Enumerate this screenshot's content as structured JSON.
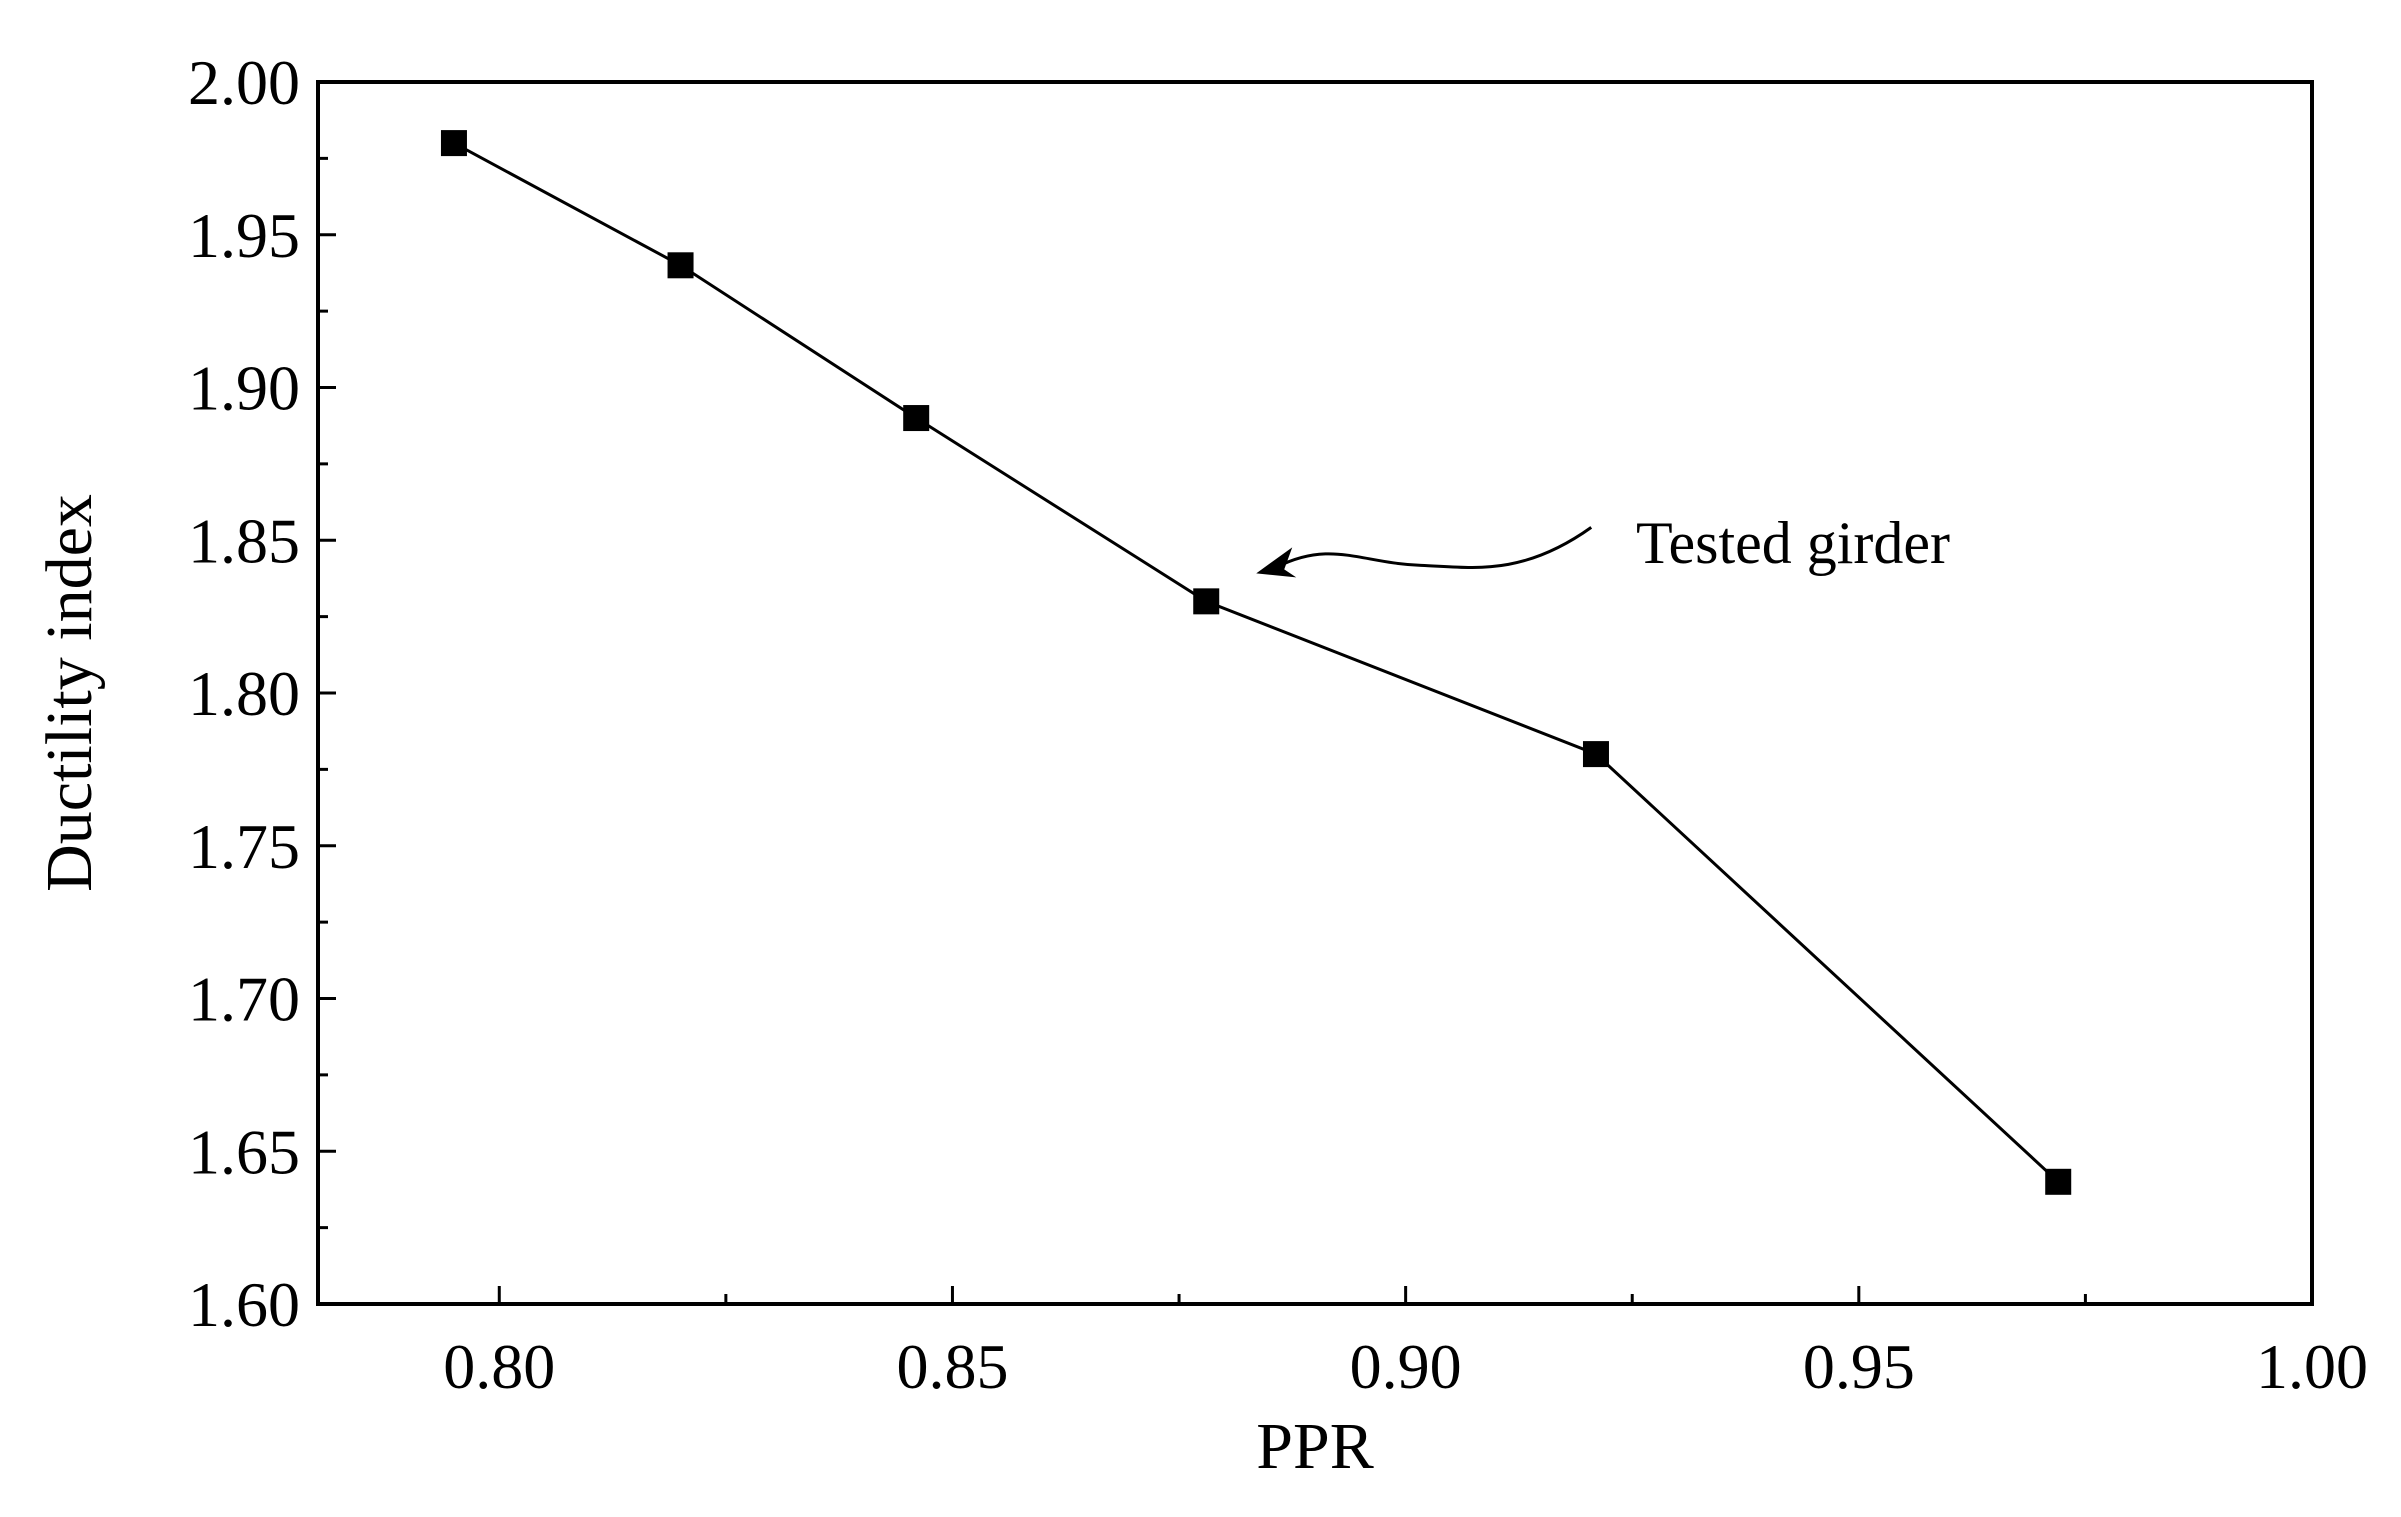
{
  "chart_data": {
    "type": "line",
    "title": "",
    "xlabel": "PPR",
    "ylabel": "Ductility index",
    "xlim": [
      0.78,
      1.0
    ],
    "ylim": [
      1.6,
      2.0
    ],
    "x_ticks": [
      "0.80",
      "0.85",
      "0.90",
      "0.95",
      "1.00"
    ],
    "y_ticks": [
      "1.60",
      "1.65",
      "1.70",
      "1.75",
      "1.80",
      "1.85",
      "1.90",
      "1.95",
      "2.00"
    ],
    "grid": false,
    "legend": "none",
    "marker": "square",
    "colors": {
      "line": "#000000",
      "marker": "#000000",
      "axes": "#000000"
    },
    "series": [
      {
        "x": [
          0.795,
          0.82,
          0.846,
          0.878,
          0.921,
          0.972
        ],
        "y": [
          1.98,
          1.94,
          1.89,
          1.83,
          1.78,
          1.64
        ]
      }
    ],
    "annotations": [
      {
        "text": "Tested girder",
        "points_to": {
          "x": 0.878,
          "y": 1.83
        }
      }
    ]
  }
}
